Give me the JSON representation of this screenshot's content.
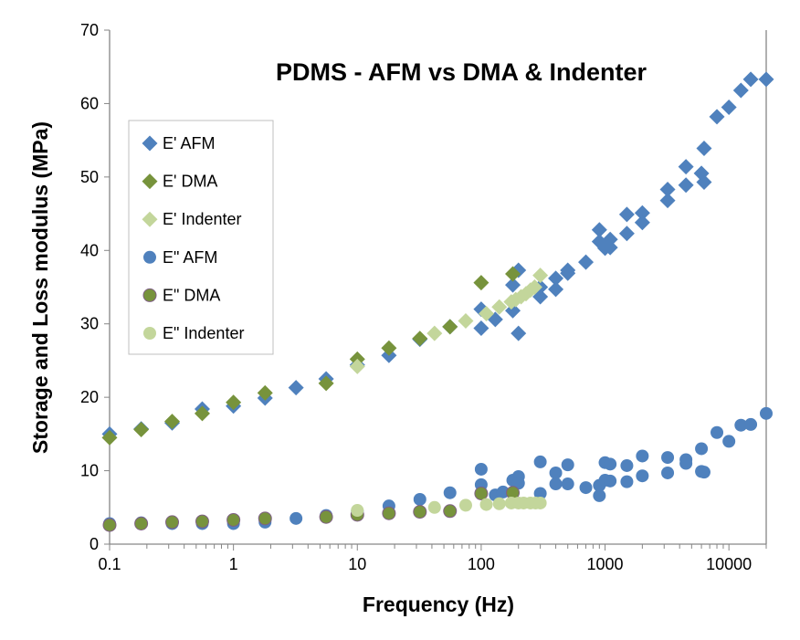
{
  "chart_data": {
    "type": "scatter",
    "title": "PDMS - AFM vs DMA & Indenter",
    "xlabel": "Frequency (Hz)",
    "ylabel": "Storage and Loss modulus (MPa)",
    "xscale": "log",
    "xlim": [
      0.1,
      20000
    ],
    "ylim": [
      0,
      70
    ],
    "xticks": [
      "0.1",
      "1",
      "10",
      "100",
      "1000",
      "10000"
    ],
    "yticks": [
      "0",
      "10",
      "20",
      "30",
      "40",
      "50",
      "60",
      "70"
    ],
    "grid": false,
    "legend_position": "left",
    "series": [
      {
        "name": "E' AFM",
        "marker": "diamond",
        "color": "#4F81BD",
        "points": [
          [
            0.1,
            15.0
          ],
          [
            0.18,
            15.7
          ],
          [
            0.32,
            16.5
          ],
          [
            0.56,
            18.4
          ],
          [
            1,
            18.8
          ],
          [
            1.8,
            19.9
          ],
          [
            3.2,
            21.3
          ],
          [
            5.6,
            22.5
          ],
          [
            10,
            24.4
          ],
          [
            18,
            25.7
          ],
          [
            32,
            27.9
          ],
          [
            56,
            29.6
          ],
          [
            100,
            29.4
          ],
          [
            100,
            32.0
          ],
          [
            130,
            30.6
          ],
          [
            180,
            31.8
          ],
          [
            180,
            35.3
          ],
          [
            200,
            37.3
          ],
          [
            200,
            28.7
          ],
          [
            300,
            33.7
          ],
          [
            300,
            35.0
          ],
          [
            400,
            36.2
          ],
          [
            400,
            34.7
          ],
          [
            500,
            36.9
          ],
          [
            500,
            37.3
          ],
          [
            700,
            38.4
          ],
          [
            900,
            42.8
          ],
          [
            900,
            41.2
          ],
          [
            1000,
            40.3
          ],
          [
            1100,
            41.5
          ],
          [
            1100,
            40.4
          ],
          [
            1500,
            44.9
          ],
          [
            1500,
            42.3
          ],
          [
            2000,
            45.1
          ],
          [
            2000,
            43.8
          ],
          [
            3200,
            48.3
          ],
          [
            3200,
            46.8
          ],
          [
            4500,
            51.4
          ],
          [
            4500,
            48.9
          ],
          [
            6000,
            50.5
          ],
          [
            6300,
            53.9
          ],
          [
            6300,
            49.3
          ],
          [
            8000,
            58.2
          ],
          [
            10000,
            59.5
          ],
          [
            12500,
            61.8
          ],
          [
            15000,
            63.3
          ],
          [
            20000,
            63.3
          ]
        ]
      },
      {
        "name": "E' DMA",
        "marker": "diamond",
        "color": "#77933C",
        "points": [
          [
            0.1,
            14.5
          ],
          [
            0.18,
            15.6
          ],
          [
            0.32,
            16.7
          ],
          [
            0.56,
            17.8
          ],
          [
            1,
            19.3
          ],
          [
            1.8,
            20.6
          ],
          [
            5.6,
            21.9
          ],
          [
            10,
            25.2
          ],
          [
            18,
            26.7
          ],
          [
            32,
            28.0
          ],
          [
            56,
            29.6
          ],
          [
            100,
            35.6
          ],
          [
            180,
            36.8
          ]
        ]
      },
      {
        "name": "E' Indenter",
        "marker": "diamond",
        "color": "#C3D69B",
        "points": [
          [
            10,
            24.2
          ],
          [
            42,
            28.7
          ],
          [
            75,
            30.4
          ],
          [
            110,
            31.4
          ],
          [
            140,
            32.3
          ],
          [
            175,
            33.0
          ],
          [
            190,
            33.3
          ],
          [
            210,
            33.7
          ],
          [
            230,
            34.1
          ],
          [
            250,
            34.6
          ],
          [
            270,
            35.0
          ],
          [
            300,
            36.6
          ]
        ]
      },
      {
        "name": "E'' AFM",
        "label": "E\" AFM",
        "marker": "circle",
        "color": "#4F81BD",
        "points": [
          [
            0.1,
            2.8
          ],
          [
            0.18,
            2.9
          ],
          [
            0.32,
            2.8
          ],
          [
            0.56,
            2.8
          ],
          [
            1,
            2.8
          ],
          [
            1.8,
            3.0
          ],
          [
            3.2,
            3.5
          ],
          [
            5.6,
            3.9
          ],
          [
            10,
            4.5
          ],
          [
            18,
            5.2
          ],
          [
            32,
            6.1
          ],
          [
            56,
            7.0
          ],
          [
            100,
            10.2
          ],
          [
            100,
            8.1
          ],
          [
            100,
            7.0
          ],
          [
            130,
            6.7
          ],
          [
            150,
            7.1
          ],
          [
            180,
            8.7
          ],
          [
            200,
            9.2
          ],
          [
            200,
            8.3
          ],
          [
            300,
            11.2
          ],
          [
            300,
            6.9
          ],
          [
            400,
            9.7
          ],
          [
            400,
            8.2
          ],
          [
            500,
            10.8
          ],
          [
            500,
            8.2
          ],
          [
            700,
            7.7
          ],
          [
            900,
            6.6
          ],
          [
            900,
            8.0
          ],
          [
            1000,
            11.1
          ],
          [
            1000,
            8.7
          ],
          [
            1100,
            10.9
          ],
          [
            1100,
            8.6
          ],
          [
            1500,
            10.7
          ],
          [
            1500,
            8.5
          ],
          [
            2000,
            12.0
          ],
          [
            2000,
            9.3
          ],
          [
            3200,
            11.8
          ],
          [
            3200,
            9.7
          ],
          [
            4500,
            11.5
          ],
          [
            4500,
            11.0
          ],
          [
            6000,
            9.9
          ],
          [
            6000,
            13.0
          ],
          [
            6300,
            9.8
          ],
          [
            8000,
            15.2
          ],
          [
            10000,
            14.0
          ],
          [
            12500,
            16.2
          ],
          [
            15000,
            16.3
          ],
          [
            20000,
            17.8
          ]
        ]
      },
      {
        "name": "E'' DMA",
        "label": "E\" DMA",
        "marker": "circle",
        "color": "#77933C",
        "points": [
          [
            0.1,
            2.6
          ],
          [
            0.18,
            2.8
          ],
          [
            0.32,
            3.0
          ],
          [
            0.56,
            3.1
          ],
          [
            1,
            3.3
          ],
          [
            1.8,
            3.5
          ],
          [
            5.6,
            3.7
          ],
          [
            10,
            4.0
          ],
          [
            18,
            4.2
          ],
          [
            32,
            4.4
          ],
          [
            56,
            4.5
          ],
          [
            100,
            6.9
          ],
          [
            180,
            7.0
          ]
        ]
      },
      {
        "name": "E'' Indenter",
        "label": "E\" Indenter",
        "marker": "circle",
        "color": "#C3D69B",
        "points": [
          [
            10,
            4.6
          ],
          [
            42,
            5.0
          ],
          [
            75,
            5.3
          ],
          [
            110,
            5.4
          ],
          [
            140,
            5.5
          ],
          [
            175,
            5.6
          ],
          [
            200,
            5.6
          ],
          [
            220,
            5.6
          ],
          [
            250,
            5.6
          ],
          [
            275,
            5.6
          ],
          [
            300,
            5.6
          ]
        ]
      }
    ]
  }
}
